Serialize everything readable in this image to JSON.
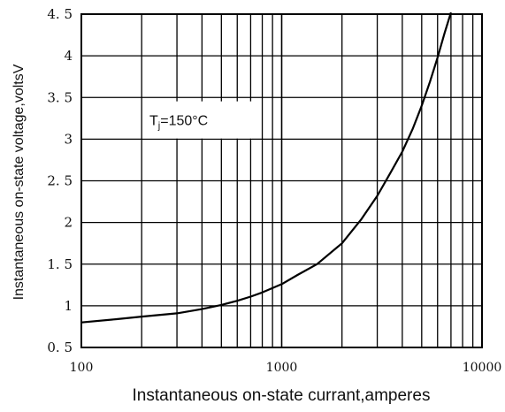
{
  "chart_data": {
    "type": "line",
    "x_scale": "log",
    "xlabel": "Instantaneous on-state currant,amperes",
    "ylabel": "Instantaneous on-state voltage,voltsV",
    "xlim": [
      100,
      10000
    ],
    "ylim": [
      0.5,
      4.5
    ],
    "x_ticks": [
      {
        "value": 100,
        "label": "100"
      },
      {
        "value": 1000,
        "label": "1000"
      },
      {
        "value": 10000,
        "label": "10000"
      }
    ],
    "y_ticks": [
      {
        "value": 0.5,
        "label": "0. 5"
      },
      {
        "value": 1,
        "label": "1"
      },
      {
        "value": 1.5,
        "label": "1. 5"
      },
      {
        "value": 2,
        "label": "2"
      },
      {
        "value": 2.5,
        "label": "2. 5"
      },
      {
        "value": 3,
        "label": "3"
      },
      {
        "value": 3.5,
        "label": "3. 5"
      },
      {
        "value": 4,
        "label": "4"
      },
      {
        "value": 4.5,
        "label": "4. 5"
      }
    ],
    "grid": true,
    "annotation": {
      "text": "T",
      "subscript": "j",
      "suffix": "=150°C",
      "x": 320,
      "y": 3.22
    },
    "series": [
      {
        "color": "#000000",
        "x": [
          100,
          150,
          200,
          300,
          400,
          500,
          600,
          700,
          800,
          1000,
          1200,
          1500,
          2000,
          2500,
          3000,
          3500,
          4000,
          4500,
          5000,
          5500,
          6000,
          6500,
          7000
        ],
        "y": [
          0.8,
          0.84,
          0.87,
          0.91,
          0.96,
          1.01,
          1.06,
          1.11,
          1.16,
          1.26,
          1.37,
          1.5,
          1.75,
          2.04,
          2.32,
          2.6,
          2.85,
          3.12,
          3.4,
          3.69,
          3.98,
          4.27,
          4.52
        ]
      }
    ]
  }
}
